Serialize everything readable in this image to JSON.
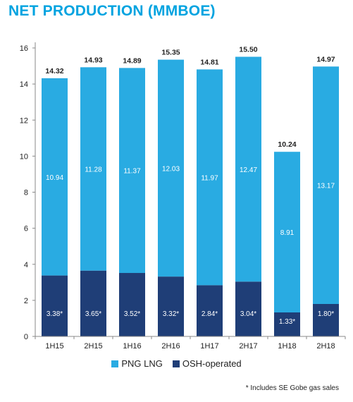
{
  "title": "NET PRODUCTION (MMBOE)",
  "footnote": "* Includes SE Gobe gas sales",
  "colors": {
    "png_lng": "#29ABE2",
    "osh": "#1F3E77",
    "axis": "#888888",
    "text": "#222222"
  },
  "chart_data": {
    "type": "bar",
    "stacked": true,
    "categories": [
      "1H15",
      "2H15",
      "1H16",
      "2H16",
      "1H17",
      "2H17",
      "1H18",
      "2H18"
    ],
    "series": [
      {
        "name": "OSH-operated",
        "values": [
          3.38,
          3.65,
          3.52,
          3.32,
          2.84,
          3.04,
          1.33,
          1.8
        ],
        "labels": [
          "3.38*",
          "3.65*",
          "3.52*",
          "3.32*",
          "2.84*",
          "3.04*",
          "1.33*",
          "1.80*"
        ]
      },
      {
        "name": "PNG LNG",
        "values": [
          10.94,
          11.28,
          11.37,
          12.03,
          11.97,
          12.47,
          8.91,
          13.17
        ],
        "labels": [
          "10.94",
          "11.28",
          "11.37",
          "12.03",
          "11.97",
          "12.47",
          "8.91",
          "13.17"
        ]
      }
    ],
    "totals": [
      "14.32",
      "14.93",
      "14.89",
      "15.35",
      "14.81",
      "15.50",
      "10.24",
      "14.97"
    ],
    "ylim": [
      0,
      16
    ],
    "yticks": [
      0,
      2,
      4,
      6,
      8,
      10,
      12,
      14,
      16
    ],
    "legend": [
      {
        "label": "PNG LNG",
        "series": "PNG LNG"
      },
      {
        "label": "OSH-operated",
        "series": "OSH-operated"
      }
    ],
    "legend_position": "bottom",
    "grid": false
  }
}
